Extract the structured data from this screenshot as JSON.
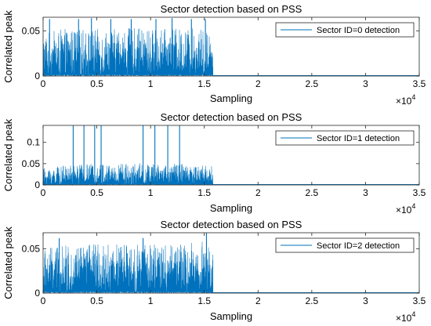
{
  "chart_data": [
    {
      "type": "line",
      "title": "Sector detection based on PSS",
      "xlabel": "Sampling",
      "ylabel": "Correlated peak",
      "xlim": [
        0,
        35000
      ],
      "ylim": [
        0,
        0.065
      ],
      "x_ticks": [
        0,
        5000,
        10000,
        15000,
        20000,
        25000,
        30000,
        35000
      ],
      "x_tick_labels": [
        "0",
        "0.5",
        "1",
        "1.5",
        "2",
        "2.5",
        "3",
        "3.5"
      ],
      "x_exponent_base": "×10",
      "x_exponent_power": "4",
      "y_ticks": [
        0,
        0.05
      ],
      "y_tick_labels": [
        "0",
        "0.05"
      ],
      "grid": false,
      "legend_position": "top-right",
      "series_color": "#0072BD",
      "series": [
        {
          "name": "Sector ID=0 detection",
          "signal_end": 15800,
          "noise_envelope": [
            {
              "x": 0,
              "y": 0.048
            },
            {
              "x": 2000,
              "y": 0.052
            },
            {
              "x": 5000,
              "y": 0.052
            },
            {
              "x": 8000,
              "y": 0.053
            },
            {
              "x": 11000,
              "y": 0.052
            },
            {
              "x": 14000,
              "y": 0.053
            },
            {
              "x": 15800,
              "y": 0.051
            }
          ],
          "peaks": [
            {
              "x": 600,
              "y": 0.063
            },
            {
              "x": 3300,
              "y": 0.063
            },
            {
              "x": 4500,
              "y": 0.064
            },
            {
              "x": 6300,
              "y": 0.063
            },
            {
              "x": 8200,
              "y": 0.063
            },
            {
              "x": 10500,
              "y": 0.063
            },
            {
              "x": 12000,
              "y": 0.064
            },
            {
              "x": 13800,
              "y": 0.063
            },
            {
              "x": 15100,
              "y": 0.063
            }
          ]
        }
      ]
    },
    {
      "type": "line",
      "title": "Sector detection based on PSS",
      "xlabel": "Sampling",
      "ylabel": "Correlated peak",
      "xlim": [
        0,
        35000
      ],
      "ylim": [
        0,
        0.14
      ],
      "x_ticks": [
        0,
        5000,
        10000,
        15000,
        20000,
        25000,
        30000,
        35000
      ],
      "x_tick_labels": [
        "0",
        "0.5",
        "1",
        "1.5",
        "2",
        "2.5",
        "3",
        "3.5"
      ],
      "x_exponent_base": "×10",
      "x_exponent_power": "4",
      "y_ticks": [
        0,
        0.05,
        0.1
      ],
      "y_tick_labels": [
        "0",
        "0.05",
        "0.1"
      ],
      "grid": false,
      "legend_position": "top-right",
      "series_color": "#0072BD",
      "series": [
        {
          "name": "Sector ID=1 detection",
          "signal_end": 15800,
          "noise_envelope": [
            {
              "x": 0,
              "y": 0.04
            },
            {
              "x": 4000,
              "y": 0.05
            },
            {
              "x": 8000,
              "y": 0.052
            },
            {
              "x": 12000,
              "y": 0.05
            },
            {
              "x": 15800,
              "y": 0.048
            }
          ],
          "peaks": [
            {
              "x": 2800,
              "y": 0.14
            },
            {
              "x": 3800,
              "y": 0.14
            },
            {
              "x": 4800,
              "y": 0.14
            },
            {
              "x": 5400,
              "y": 0.14
            },
            {
              "x": 9300,
              "y": 0.14
            },
            {
              "x": 10400,
              "y": 0.14
            },
            {
              "x": 11600,
              "y": 0.14
            },
            {
              "x": 12700,
              "y": 0.14
            }
          ]
        }
      ]
    },
    {
      "type": "line",
      "title": "Sector detection based on PSS",
      "xlabel": "Sampling",
      "ylabel": "Correlated peak",
      "xlim": [
        0,
        35000
      ],
      "ylim": [
        0,
        0.068
      ],
      "x_ticks": [
        0,
        5000,
        10000,
        15000,
        20000,
        25000,
        30000,
        35000
      ],
      "x_tick_labels": [
        "0",
        "0.5",
        "1",
        "1.5",
        "2",
        "2.5",
        "3",
        "3.5"
      ],
      "x_exponent_base": "×10",
      "x_exponent_power": "4",
      "y_ticks": [
        0,
        0.05
      ],
      "y_tick_labels": [
        "0",
        "0.05"
      ],
      "grid": false,
      "legend_position": "top-right",
      "series_color": "#0072BD",
      "series": [
        {
          "name": "Sector ID=2 detection",
          "signal_end": 15800,
          "noise_envelope": [
            {
              "x": 0,
              "y": 0.05
            },
            {
              "x": 3000,
              "y": 0.055
            },
            {
              "x": 7000,
              "y": 0.056
            },
            {
              "x": 11000,
              "y": 0.055
            },
            {
              "x": 15000,
              "y": 0.058
            },
            {
              "x": 15800,
              "y": 0.052
            }
          ],
          "peaks": [
            {
              "x": 1500,
              "y": 0.062
            },
            {
              "x": 9300,
              "y": 0.062
            },
            {
              "x": 15200,
              "y": 0.068
            }
          ]
        }
      ]
    }
  ]
}
